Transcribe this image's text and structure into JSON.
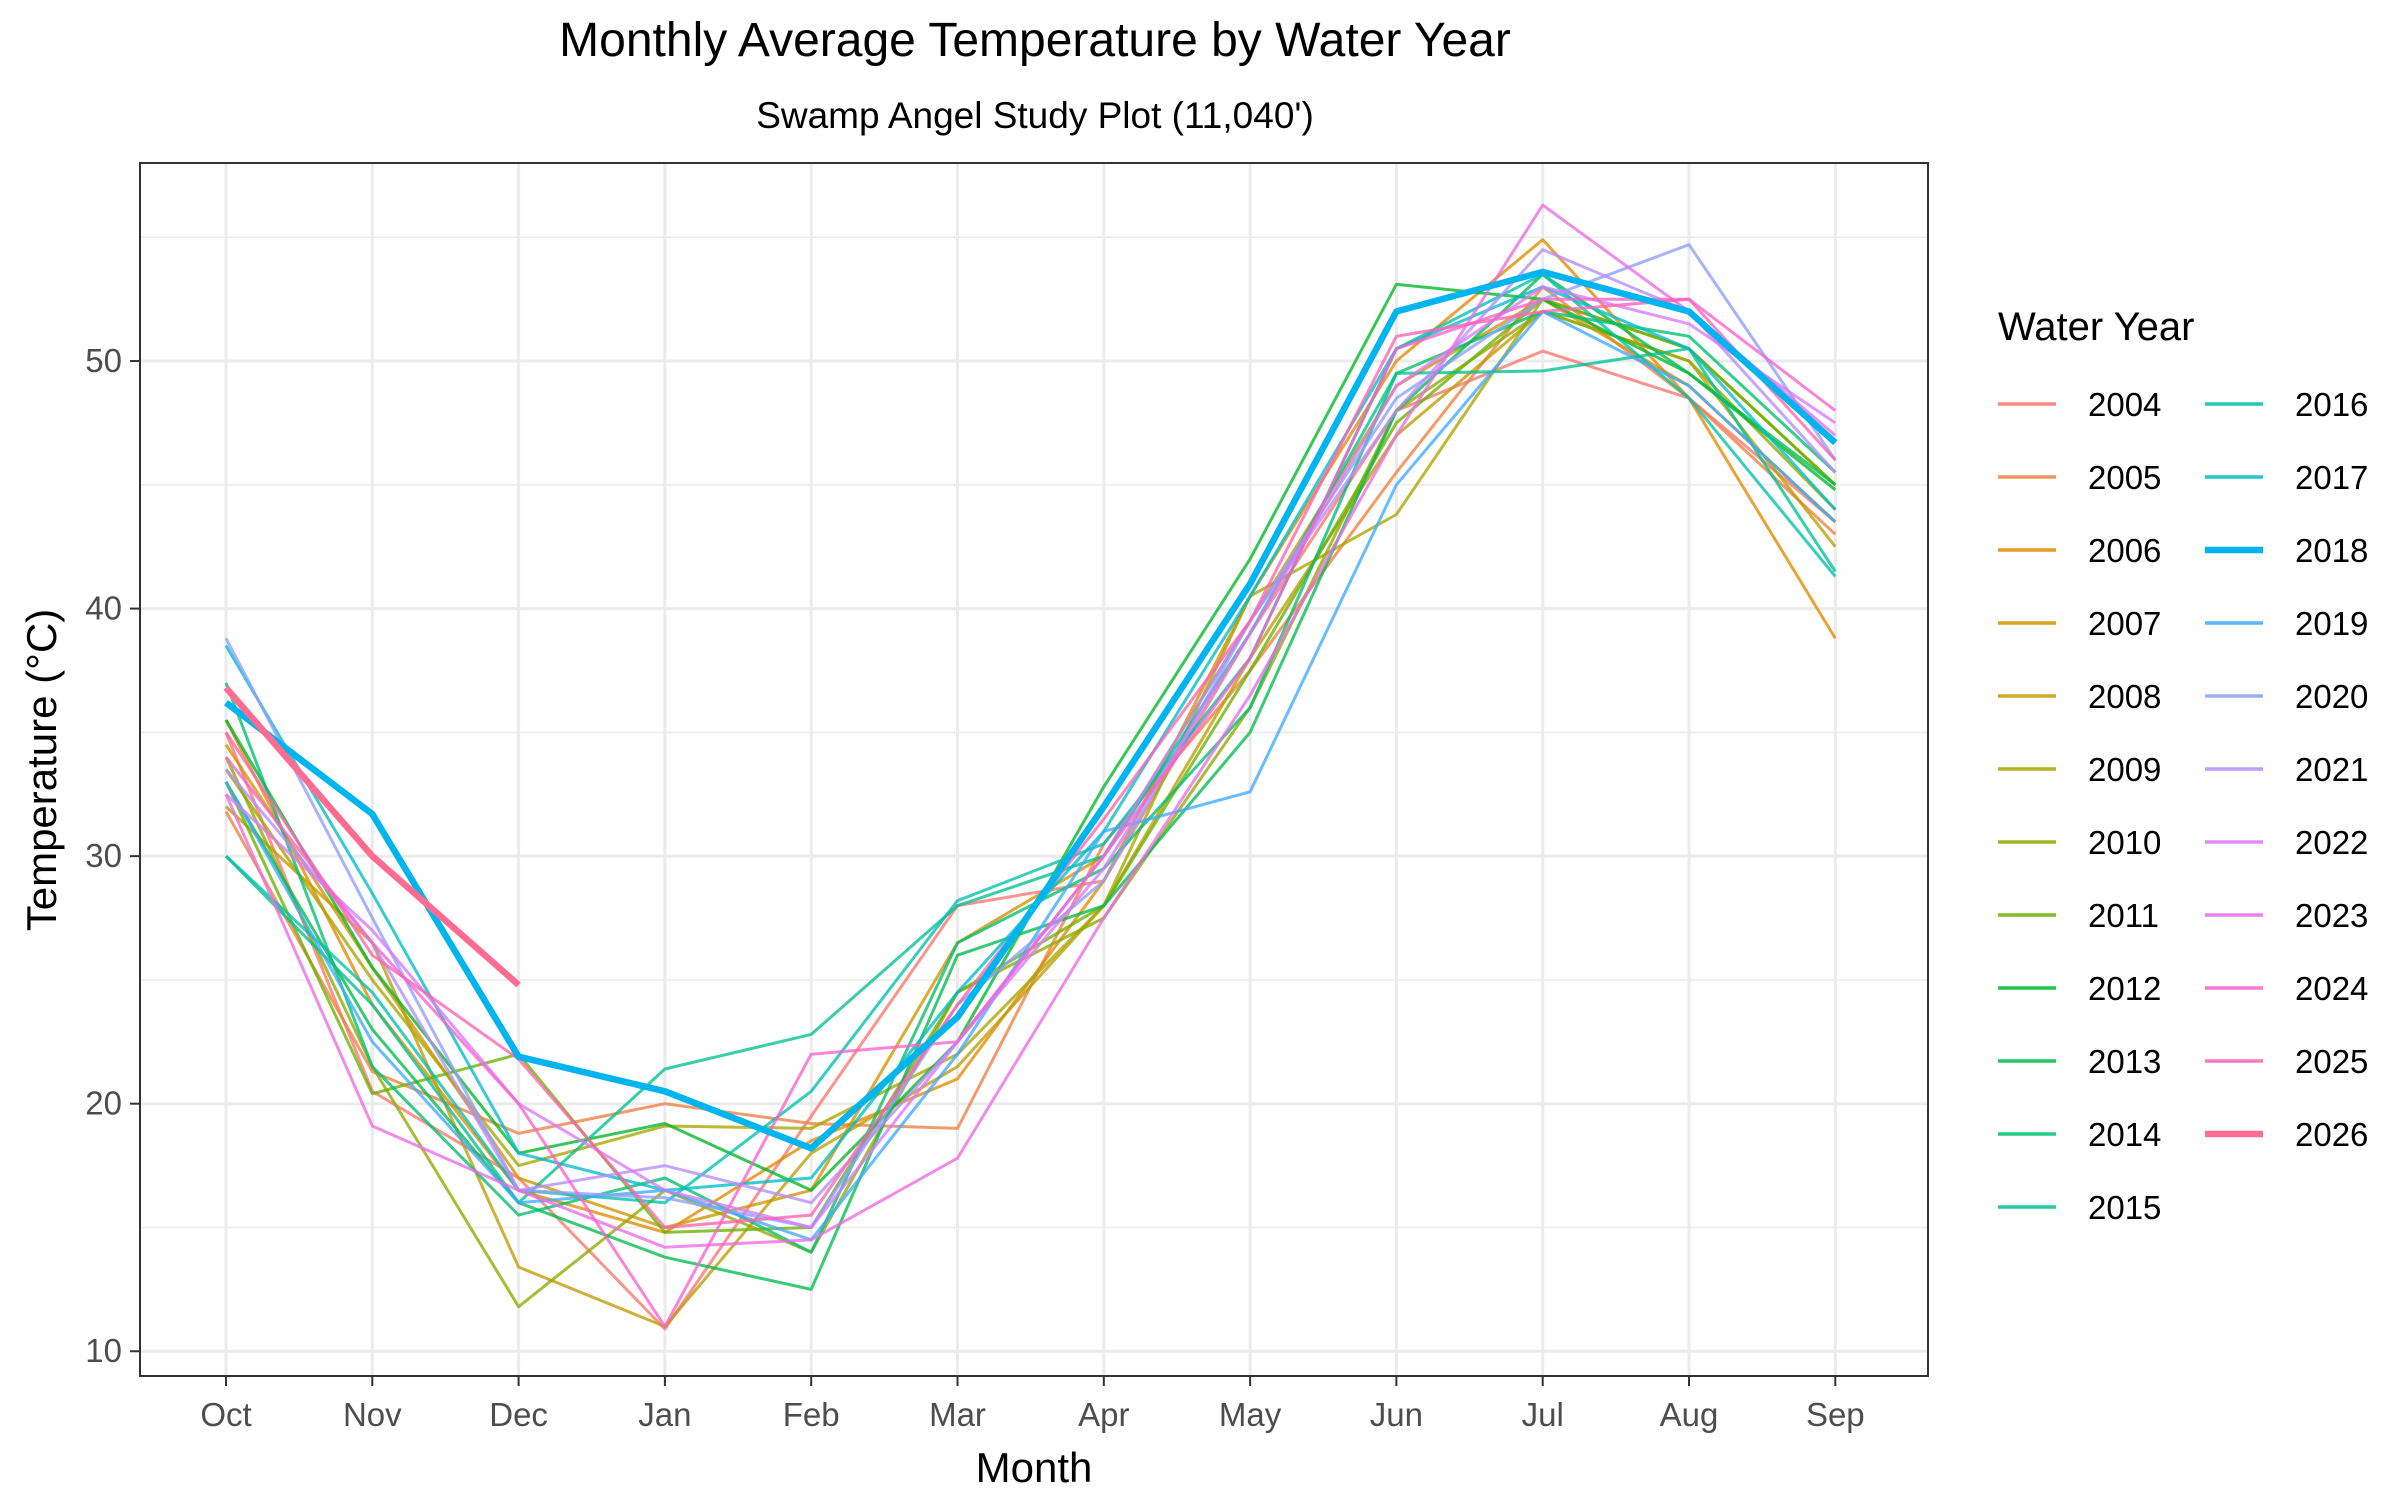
{
  "chart_data": {
    "type": "line",
    "title": "Monthly Average Temperature by Water Year",
    "subtitle": "Swamp Angel Study Plot (11,040')",
    "xlabel": "Month",
    "ylabel": "Temperature (°C)",
    "categories": [
      "Oct",
      "Nov",
      "Dec",
      "Jan",
      "Feb",
      "Mar",
      "Apr",
      "May",
      "Jun",
      "Jul",
      "Aug",
      "Sep"
    ],
    "ylim": [
      9,
      58
    ],
    "yticks": [
      10,
      20,
      30,
      40,
      50
    ],
    "grid": true,
    "legend": {
      "title": "Water Year",
      "position": "right"
    },
    "series": [
      {
        "name": "2004",
        "color": "#F8766D",
        "values": [
          35.0,
          20.5,
          17.0,
          10.9,
          19.5,
          28.0,
          29.0,
          39.0,
          48.0,
          50.4,
          48.5,
          43.5
        ]
      },
      {
        "name": "2005",
        "color": "#EE8043",
        "values": [
          31.8,
          21.3,
          18.8,
          20.0,
          19.2,
          19.0,
          30.5,
          37.5,
          45.5,
          53.0,
          48.5,
          43.0
        ]
      },
      {
        "name": "2006",
        "color": "#E18A00",
        "values": [
          35.5,
          24.0,
          16.5,
          14.8,
          18.5,
          21.0,
          29.0,
          40.5,
          50.0,
          54.9,
          48.5,
          38.8
        ]
      },
      {
        "name": "2007",
        "color": "#D19400",
        "values": [
          34.5,
          25.5,
          17.0,
          15.0,
          16.5,
          26.5,
          30.0,
          39.5,
          49.0,
          52.5,
          49.0,
          43.5
        ]
      },
      {
        "name": "2008",
        "color": "#BE9C00",
        "values": [
          32.0,
          26.5,
          13.4,
          11.0,
          18.0,
          21.5,
          28.0,
          38.0,
          47.0,
          52.0,
          50.0,
          42.5
        ]
      },
      {
        "name": "2009",
        "color": "#A9A400",
        "values": [
          33.5,
          25.0,
          17.5,
          19.1,
          19.0,
          22.0,
          28.0,
          40.5,
          43.8,
          52.5,
          50.5,
          45.0
        ]
      },
      {
        "name": "2010",
        "color": "#8EAB00",
        "values": [
          34.0,
          21.5,
          11.8,
          16.5,
          14.0,
          24.5,
          27.5,
          36.0,
          48.0,
          52.0,
          50.0,
          44.0
        ]
      },
      {
        "name": "2011",
        "color": "#6BB100",
        "values": [
          33.0,
          20.4,
          22.0,
          14.8,
          15.0,
          24.5,
          28.0,
          37.5,
          47.5,
          52.5,
          50.5,
          45.0
        ]
      },
      {
        "name": "2012",
        "color": "#00B728",
        "values": [
          35.5,
          25.5,
          18.0,
          19.2,
          16.5,
          22.5,
          32.8,
          42.0,
          53.1,
          52.5,
          49.5,
          44.8
        ]
      },
      {
        "name": "2013",
        "color": "#00BB4E",
        "values": [
          33.0,
          23.0,
          16.0,
          13.8,
          12.5,
          26.0,
          28.0,
          35.0,
          48.0,
          53.5,
          49.5,
          45.0
        ]
      },
      {
        "name": "2014",
        "color": "#00BE70",
        "values": [
          37.0,
          21.5,
          15.5,
          17.0,
          14.0,
          26.5,
          29.5,
          36.0,
          49.5,
          52.0,
          51.0,
          45.5
        ]
      },
      {
        "name": "2015",
        "color": "#00C090",
        "values": [
          30.0,
          24.0,
          16.0,
          21.4,
          22.8,
          28.0,
          30.0,
          39.0,
          49.5,
          49.6,
          50.5,
          41.5
        ]
      },
      {
        "name": "2016",
        "color": "#00C0AD",
        "values": [
          30.0,
          24.5,
          16.5,
          16.0,
          20.5,
          28.2,
          30.5,
          38.0,
          50.5,
          53.5,
          48.5,
          41.3
        ]
      },
      {
        "name": "2017",
        "color": "#00BCC8",
        "values": [
          38.5,
          28.5,
          18.0,
          16.5,
          17.0,
          24.5,
          31.0,
          40.5,
          50.5,
          53.0,
          50.5,
          44.0
        ]
      },
      {
        "name": "2018",
        "color": "#00B4EF",
        "values": [
          36.2,
          31.7,
          21.9,
          20.5,
          18.2,
          23.5,
          32.0,
          41.0,
          52.0,
          53.6,
          52.0,
          46.7
        ],
        "highlight": true
      },
      {
        "name": "2019",
        "color": "#3DA9FF",
        "values": [
          33.0,
          22.5,
          16.0,
          16.5,
          14.5,
          22.0,
          31.0,
          32.6,
          45.0,
          52.0,
          49.0,
          43.5
        ]
      },
      {
        "name": "2020",
        "color": "#8F9DFF",
        "values": [
          38.8,
          27.5,
          16.5,
          16.2,
          15.0,
          24.0,
          29.0,
          39.5,
          48.5,
          52.5,
          54.7,
          46.0
        ]
      },
      {
        "name": "2021",
        "color": "#B68CFF",
        "values": [
          33.5,
          26.5,
          16.5,
          17.5,
          16.0,
          22.5,
          30.0,
          39.5,
          48.0,
          54.5,
          52.0,
          45.5
        ]
      },
      {
        "name": "2022",
        "color": "#DA78FB",
        "values": [
          32.5,
          27.0,
          20.0,
          16.5,
          15.0,
          22.5,
          29.5,
          39.0,
          49.0,
          53.0,
          51.5,
          47.5
        ]
      },
      {
        "name": "2023",
        "color": "#EB6BE4",
        "values": [
          32.5,
          19.1,
          16.5,
          14.2,
          14.5,
          17.8,
          27.5,
          36.5,
          47.0,
          56.3,
          52.0,
          47.0
        ]
      },
      {
        "name": "2024",
        "color": "#F763CE",
        "values": [
          34.0,
          26.5,
          20.0,
          11.0,
          22.0,
          22.5,
          30.0,
          38.0,
          50.5,
          52.5,
          52.5,
          48.0
        ]
      },
      {
        "name": "2025",
        "color": "#FF62B1",
        "values": [
          35.0,
          26.0,
          21.8,
          15.0,
          15.5,
          24.0,
          31.5,
          39.5,
          51.0,
          52.0,
          52.5,
          46.0
        ]
      },
      {
        "name": "2026",
        "color": "#FF6C91",
        "values": [
          36.8,
          30.0,
          24.8,
          null,
          null,
          null,
          null,
          null,
          null,
          null,
          null,
          null
        ],
        "highlight": true
      }
    ]
  }
}
